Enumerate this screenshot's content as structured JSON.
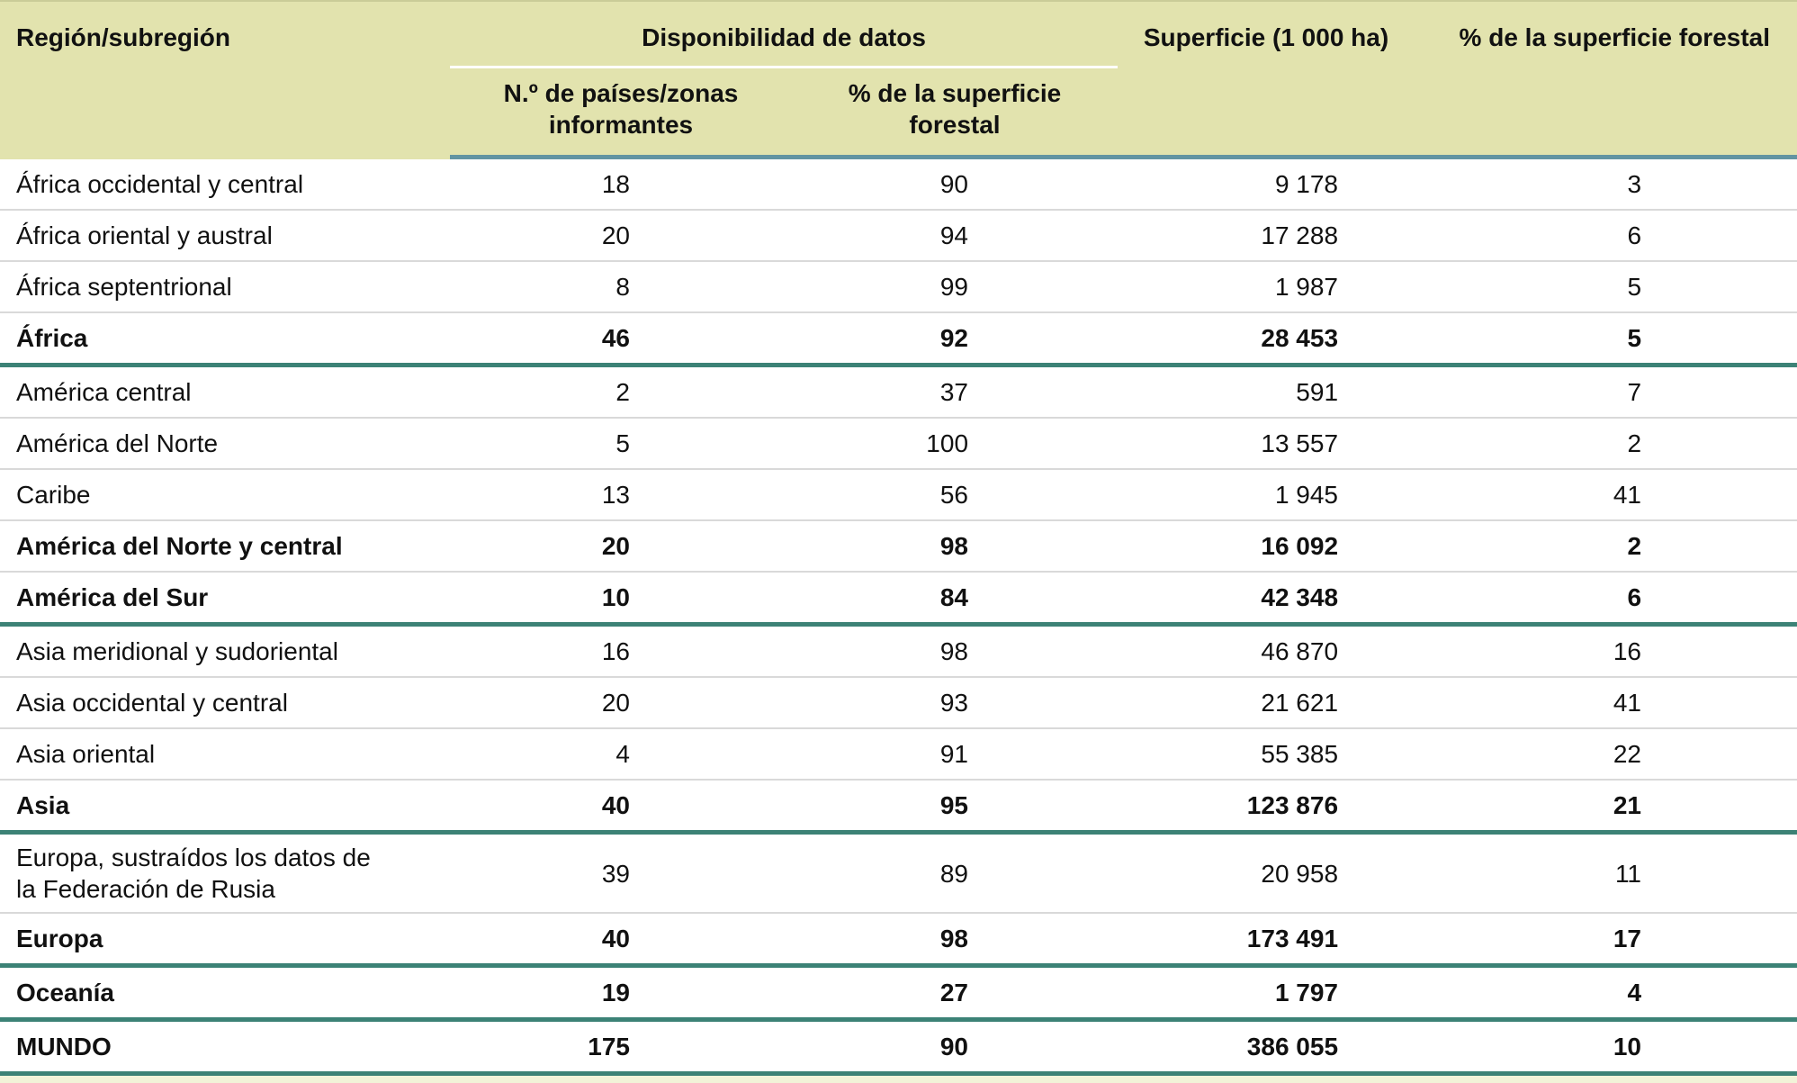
{
  "table": {
    "header": {
      "region": "Región/subregión",
      "availability_group": "Disponibilidad de datos",
      "countries_sub": "N.º de países/zonas informantes",
      "pct_forest_sub": "% de la superficie forestal",
      "area": "Superficie (1 000 ha)",
      "pct_forest": "% de la superficie forestal"
    },
    "rows": [
      {
        "region": "África occidental y central",
        "countries": "18",
        "pct_forest": "90",
        "area": "9 178",
        "pct_of_area": "3",
        "bold": false,
        "section_end": false
      },
      {
        "region": "África oriental y austral",
        "countries": "20",
        "pct_forest": "94",
        "area": "17 288",
        "pct_of_area": "6",
        "bold": false,
        "section_end": false
      },
      {
        "region": "África septentrional",
        "countries": "8",
        "pct_forest": "99",
        "area": "1 987",
        "pct_of_area": "5",
        "bold": false,
        "section_end": false
      },
      {
        "region": "África",
        "countries": "46",
        "pct_forest": "92",
        "area": "28 453",
        "pct_of_area": "5",
        "bold": true,
        "section_end": true
      },
      {
        "region": "América central",
        "countries": "2",
        "pct_forest": "37",
        "area": "591",
        "pct_of_area": "7",
        "bold": false,
        "section_end": false
      },
      {
        "region": "América del Norte",
        "countries": "5",
        "pct_forest": "100",
        "area": "13 557",
        "pct_of_area": "2",
        "bold": false,
        "section_end": false
      },
      {
        "region": "Caribe",
        "countries": "13",
        "pct_forest": "56",
        "area": "1 945",
        "pct_of_area": "41",
        "bold": false,
        "section_end": false
      },
      {
        "region": "América del Norte y central",
        "countries": "20",
        "pct_forest": "98",
        "area": "16 092",
        "pct_of_area": "2",
        "bold": true,
        "section_end": false
      },
      {
        "region": "América del Sur",
        "countries": "10",
        "pct_forest": "84",
        "area": "42 348",
        "pct_of_area": "6",
        "bold": true,
        "section_end": true
      },
      {
        "region": "Asia meridional y sudoriental",
        "countries": "16",
        "pct_forest": "98",
        "area": "46 870",
        "pct_of_area": "16",
        "bold": false,
        "section_end": false
      },
      {
        "region": "Asia occidental y central",
        "countries": "20",
        "pct_forest": "93",
        "area": "21 621",
        "pct_of_area": "41",
        "bold": false,
        "section_end": false
      },
      {
        "region": "Asia oriental",
        "countries": "4",
        "pct_forest": "91",
        "area": "55 385",
        "pct_of_area": "22",
        "bold": false,
        "section_end": false
      },
      {
        "region": "Asia",
        "countries": "40",
        "pct_forest": "95",
        "area": "123 876",
        "pct_of_area": "21",
        "bold": true,
        "section_end": true
      },
      {
        "region": "Europa, sustraídos los datos de la Federación de Rusia",
        "countries": "39",
        "pct_forest": "89",
        "area": "20 958",
        "pct_of_area": "11",
        "bold": false,
        "section_end": false
      },
      {
        "region": "Europa",
        "countries": "40",
        "pct_forest": "98",
        "area": "173 491",
        "pct_of_area": "17",
        "bold": true,
        "section_end": true
      },
      {
        "region": "Oceanía",
        "countries": "19",
        "pct_forest": "27",
        "area": "1 797",
        "pct_of_area": "4",
        "bold": true,
        "section_end": true
      },
      {
        "region": "MUNDO",
        "countries": "175",
        "pct_forest": "90",
        "area": "386 055",
        "pct_of_area": "10",
        "bold": true,
        "section_end": true
      }
    ]
  },
  "colors": {
    "header_bg": "#e2e3ae",
    "header_rule_blue": "#6294a2",
    "section_rule_teal": "#3c8276",
    "row_separator_gray": "#d9d9d9",
    "availability_underline": "#ffffff",
    "footer_strip": "#f2f3d8",
    "text": "#111111"
  }
}
